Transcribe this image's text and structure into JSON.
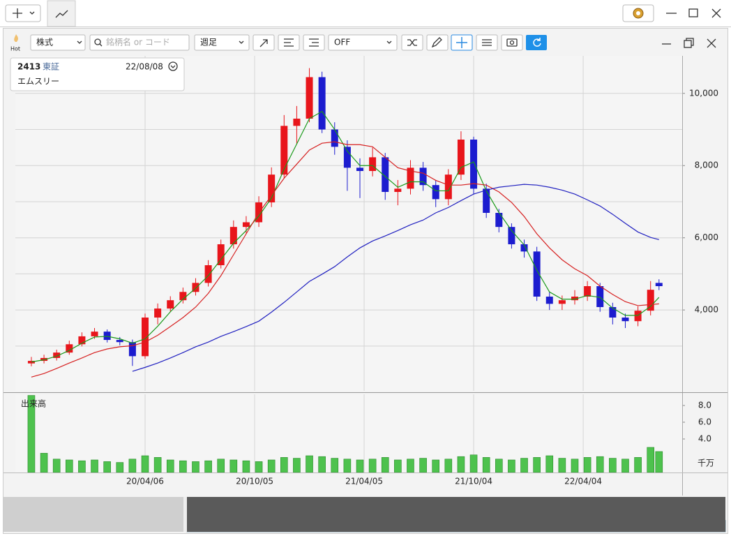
{
  "toolbar": {
    "hot_label": "Hot",
    "market": "株式",
    "search_placeholder": "銘柄名 or コード",
    "period": "週足",
    "overlay": "OFF"
  },
  "stock": {
    "code": "2413",
    "exchange": "東証",
    "date": "22/08/08",
    "name": "エムスリー"
  },
  "chart_data": [
    {
      "type": "candlestick",
      "x": [
        0,
        3,
        6,
        9,
        12,
        15,
        18,
        21,
        24,
        27,
        30,
        33,
        36,
        39,
        42,
        45,
        48,
        51,
        54,
        57,
        60,
        63,
        66,
        69,
        72,
        75,
        78,
        81,
        84,
        87,
        90,
        93,
        96,
        99,
        102,
        105,
        108,
        111,
        114,
        117,
        120,
        123,
        126,
        129,
        132,
        135,
        138,
        141,
        144,
        147,
        149
      ],
      "open": [
        2520,
        2590,
        2670,
        2820,
        3050,
        3270,
        3400,
        3170,
        3110,
        2720,
        3790,
        4040,
        4270,
        4500,
        4750,
        5240,
        5820,
        6300,
        6430,
        6980,
        7750,
        9100,
        9300,
        10450,
        9000,
        8520,
        7940,
        7850,
        8230,
        7270,
        7360,
        7940,
        7460,
        7070,
        7750,
        8720,
        7360,
        6690,
        6300,
        5820,
        5620,
        4370,
        4170,
        4270,
        4370,
        4660,
        4080,
        3790,
        3690,
        3980,
        4750
      ],
      "high": [
        2700,
        2760,
        2900,
        3150,
        3380,
        3500,
        3460,
        3250,
        3180,
        3900,
        4180,
        4380,
        4620,
        4880,
        5380,
        5950,
        6480,
        6600,
        7150,
        7950,
        9400,
        9650,
        10700,
        10600,
        9200,
        8700,
        8200,
        8500,
        8350,
        7600,
        8150,
        8100,
        7600,
        7900,
        8950,
        8800,
        7500,
        6800,
        6400,
        5950,
        5750,
        4500,
        4400,
        4550,
        4800,
        4750,
        4200,
        3900,
        4100,
        4800,
        4850
      ],
      "low": [
        2440,
        2520,
        2600,
        2760,
        2990,
        3200,
        3100,
        3020,
        2450,
        2650,
        3600,
        3950,
        4180,
        4400,
        4650,
        5150,
        5700,
        6100,
        6300,
        6850,
        7650,
        8600,
        9200,
        8900,
        8300,
        7300,
        7100,
        7700,
        7050,
        6900,
        7200,
        7300,
        6850,
        6900,
        7600,
        7200,
        6550,
        6150,
        5700,
        5450,
        4250,
        4000,
        4000,
        4150,
        4250,
        3950,
        3600,
        3500,
        3550,
        3850,
        4550
      ],
      "close": [
        2590,
        2670,
        2820,
        3050,
        3270,
        3400,
        3170,
        3110,
        2720,
        3790,
        4040,
        4270,
        4500,
        4750,
        5240,
        5820,
        6300,
        6430,
        6980,
        7750,
        9100,
        9300,
        10450,
        9000,
        8520,
        7940,
        7850,
        8230,
        7270,
        7360,
        7940,
        7460,
        7070,
        7750,
        8720,
        7360,
        6690,
        6300,
        5820,
        5620,
        4370,
        4170,
        4270,
        4370,
        4660,
        4080,
        3790,
        3690,
        3980,
        4560,
        4660
      ],
      "up_color": "#e8151b",
      "down_color": "#1c1ccf",
      "series": [
        {
          "color": "#1a9a1a",
          "values": [
            2560,
            2620,
            2720,
            2880,
            3080,
            3250,
            3270,
            3200,
            3080,
            3200,
            3550,
            3950,
            4300,
            4600,
            4950,
            5400,
            5850,
            6200,
            6600,
            7100,
            7900,
            8600,
            9300,
            9500,
            9000,
            8400,
            8000,
            8000,
            7700,
            7400,
            7550,
            7550,
            7300,
            7300,
            7950,
            8100,
            7300,
            6700,
            6200,
            5800,
            5100,
            4500,
            4300,
            4300,
            4400,
            4350,
            4050,
            3850,
            3850,
            4100,
            4350
          ]
        },
        {
          "color": "#d62020",
          "values": [
            2140,
            2240,
            2380,
            2530,
            2670,
            2820,
            2920,
            2980,
            3010,
            3110,
            3300,
            3540,
            3790,
            4080,
            4460,
            4950,
            5530,
            6110,
            6690,
            7170,
            7650,
            8040,
            8430,
            8620,
            8660,
            8580,
            8580,
            8520,
            8230,
            7940,
            7850,
            7790,
            7590,
            7460,
            7460,
            7500,
            7460,
            7270,
            6980,
            6590,
            6110,
            5720,
            5390,
            5140,
            4950,
            4660,
            4430,
            4230,
            4120,
            4150,
            4170
          ]
        },
        {
          "color": "#2020c0",
          "values": [
            null,
            null,
            null,
            null,
            null,
            null,
            null,
            null,
            2300,
            2410,
            2530,
            2670,
            2820,
            2980,
            3110,
            3270,
            3400,
            3540,
            3690,
            3940,
            4210,
            4500,
            4790,
            4990,
            5200,
            5470,
            5720,
            5910,
            6050,
            6200,
            6360,
            6490,
            6690,
            6840,
            7030,
            7210,
            7320,
            7400,
            7440,
            7480,
            7460,
            7400,
            7320,
            7210,
            7050,
            6880,
            6650,
            6400,
            6160,
            6010,
            5950
          ]
        }
      ],
      "xlim": [
        -3.8,
        154.5
      ],
      "xticks": [
        27,
        53,
        79,
        105,
        131
      ],
      "ylim": [
        1760,
        11040
      ],
      "yticks": [
        {
          "value": 4000,
          "label": "4,000"
        },
        {
          "value": 6000,
          "label": "6,000"
        },
        {
          "value": 8000,
          "label": "8,000"
        },
        {
          "value": 10000,
          "label": "10,000"
        }
      ],
      "yticks_minor": [
        3000,
        5000,
        7000,
        9000
      ],
      "grid": true
    },
    {
      "type": "bar",
      "title": "出来高",
      "unit_label": "千万",
      "color": "#4ec24e",
      "x": [
        0,
        3,
        6,
        9,
        12,
        15,
        18,
        21,
        24,
        27,
        30,
        33,
        36,
        39,
        42,
        45,
        48,
        51,
        54,
        57,
        60,
        63,
        66,
        69,
        72,
        75,
        78,
        81,
        84,
        87,
        90,
        93,
        96,
        99,
        102,
        105,
        108,
        111,
        114,
        117,
        120,
        123,
        126,
        129,
        132,
        135,
        138,
        141,
        144,
        147,
        149
      ],
      "values": [
        9.2,
        2.3,
        1.6,
        1.5,
        1.4,
        1.5,
        1.3,
        1.2,
        1.6,
        2.0,
        1.8,
        1.5,
        1.4,
        1.3,
        1.4,
        1.6,
        1.5,
        1.4,
        1.3,
        1.5,
        1.8,
        1.7,
        2.0,
        1.9,
        1.7,
        1.6,
        1.5,
        1.6,
        1.8,
        1.5,
        1.6,
        1.7,
        1.5,
        1.6,
        1.9,
        2.1,
        1.8,
        1.6,
        1.5,
        1.7,
        1.8,
        2.0,
        1.7,
        1.6,
        1.8,
        1.9,
        1.7,
        1.6,
        1.8,
        3.0,
        2.5
      ],
      "xlim": [
        -3.8,
        154.5
      ],
      "xticks": [
        {
          "value": 27,
          "label": "20/04/06"
        },
        {
          "value": 53,
          "label": "20/10/05"
        },
        {
          "value": 79,
          "label": "21/04/05"
        },
        {
          "value": 105,
          "label": "21/10/04"
        },
        {
          "value": 131,
          "label": "22/04/04"
        }
      ],
      "ylim": [
        0,
        9.33
      ],
      "yticks": [
        {
          "value": 4,
          "label": "4.0"
        },
        {
          "value": 6,
          "label": "6.0"
        },
        {
          "value": 8,
          "label": "8.0"
        }
      ]
    }
  ]
}
